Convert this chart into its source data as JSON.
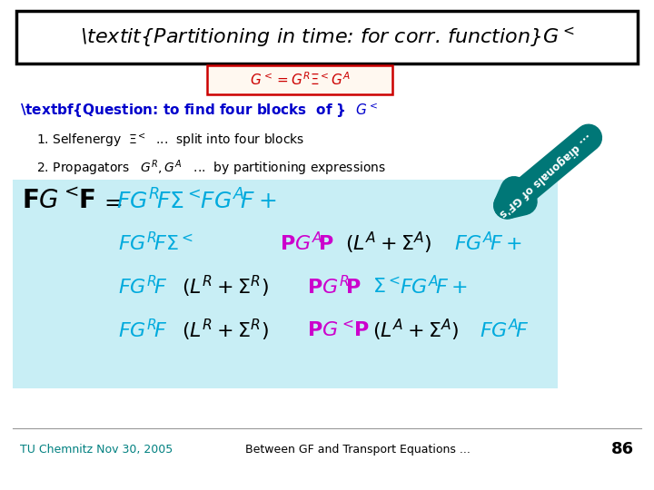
{
  "title_italic": "Partitioning in time: for corr. function",
  "title_math": "$G^<$",
  "title_box_color": "#000000",
  "title_bg": "#ffffff",
  "question_prefix": "Question: to find four blocks  of  ",
  "question_math": "$G^<$",
  "question_color": "#0000cc",
  "item_color": "#000000",
  "formula_box_color": "#c8eef5",
  "arrow_color": "#007777",
  "arrow_text": "... diagonals of GF's",
  "footnote_left": "TU Chemnitz Nov 30, 2005",
  "footnote_mid": "Between GF and Transport Equations ...",
  "footnote_right": "86",
  "footnote_color": "#008080",
  "bg_color": "#ffffff",
  "box_eq_color": "#cc0000",
  "cyan": "#00aadd",
  "magenta": "#cc00cc",
  "black": "#000000"
}
